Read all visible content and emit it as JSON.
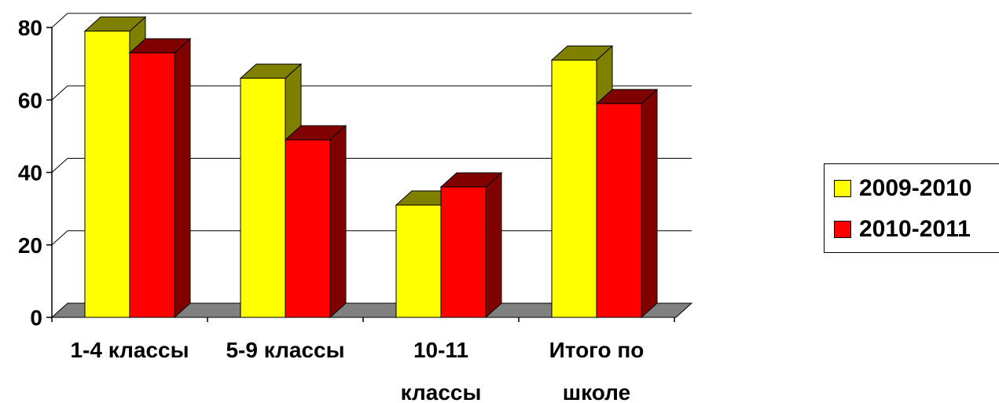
{
  "chart_data": {
    "type": "bar",
    "categories": [
      "1-4 классы",
      "5-9 классы",
      "10-11 классы",
      "Итого по школе"
    ],
    "category_lines": [
      [
        "1-4 классы"
      ],
      [
        "5-9 классы"
      ],
      [
        "10-11",
        "классы"
      ],
      [
        "Итого по",
        "школе"
      ]
    ],
    "series": [
      {
        "name": "2009-2010",
        "values": [
          79,
          66,
          31,
          71
        ],
        "color": "#FFFF00",
        "side_color": "#808000"
      },
      {
        "name": "2010-2011",
        "values": [
          73,
          49,
          36,
          59
        ],
        "color": "#FF0000",
        "side_color": "#800000"
      }
    ],
    "yticks": [
      "0",
      "20",
      "40",
      "60",
      "80"
    ],
    "ylim": [
      0,
      80
    ],
    "grid": true,
    "legend_position": "right",
    "floor_color": "#808080"
  }
}
